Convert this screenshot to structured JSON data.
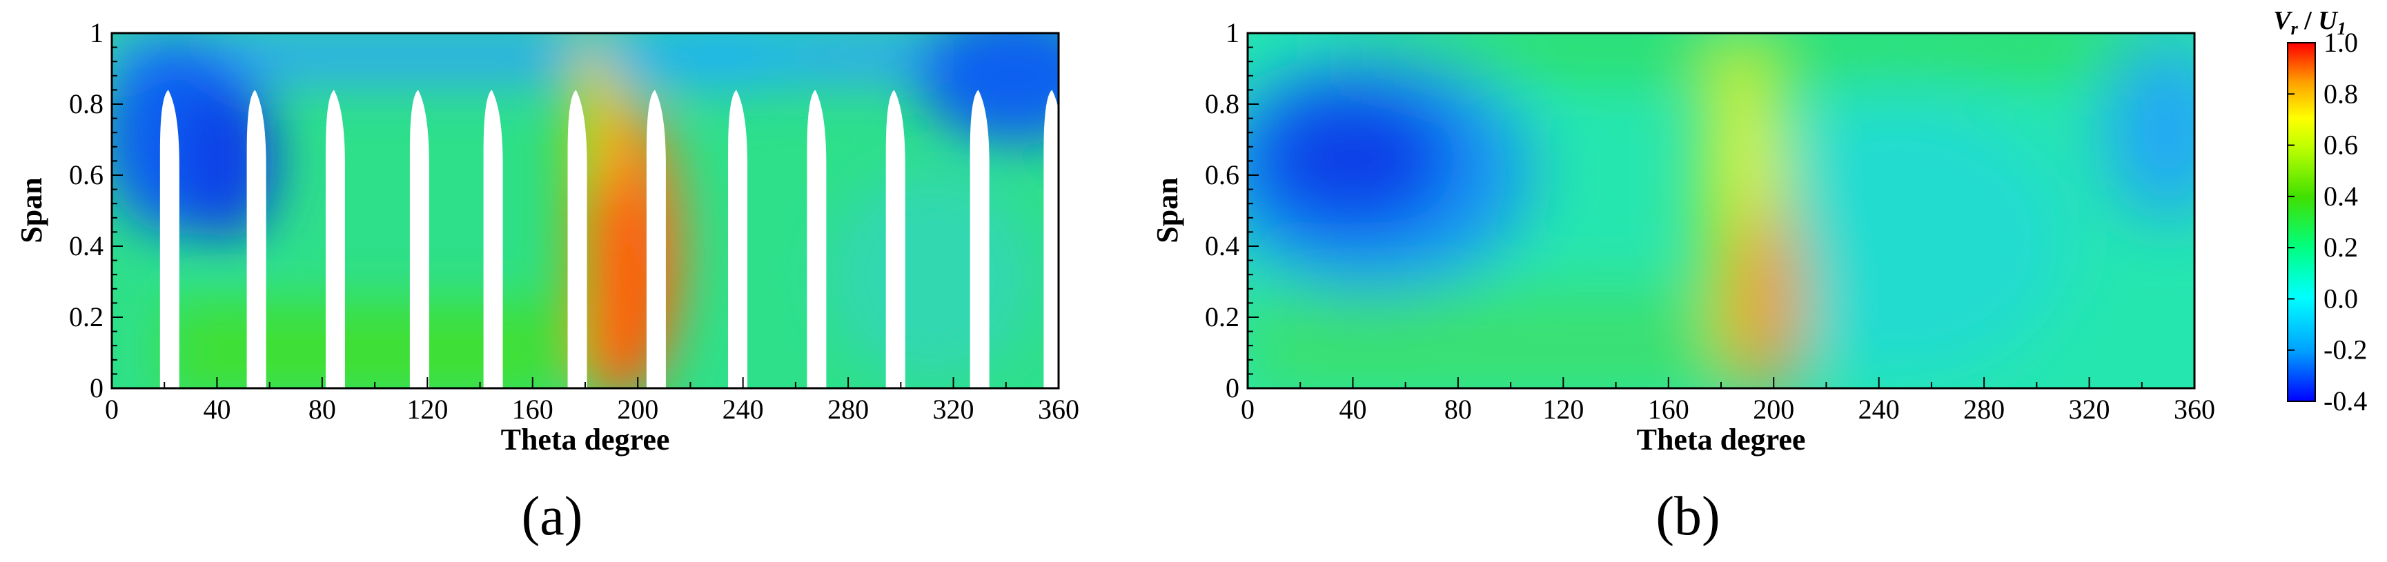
{
  "colors": {
    "colormap": [
      "#0000ff",
      "#00a0ff",
      "#00ffff",
      "#00ff80",
      "#40e000",
      "#c0ff00",
      "#ffff00",
      "#ffa000",
      "#ff0000"
    ],
    "axis": "#000000",
    "blade": "#ffffff"
  },
  "chart_data": [
    {
      "type": "heatmap",
      "panel_label": "(a)",
      "xlabel": "Theta degree",
      "ylabel": "Span",
      "xlim": [
        0,
        360
      ],
      "ylim": [
        0,
        1
      ],
      "x_ticks": [
        "0",
        "40",
        "80",
        "120",
        "160",
        "200",
        "240",
        "280",
        "320",
        "360"
      ],
      "y_ticks": [
        "0",
        "0.2",
        "0.4",
        "0.6",
        "0.8",
        "1"
      ],
      "quantity": "Vr / U1",
      "blades_theta_deg": [
        22,
        55,
        85,
        117,
        145,
        177,
        207,
        238,
        268,
        298,
        330,
        358
      ],
      "blade_tip_span": 0.84,
      "features": [
        {
          "theta": 25,
          "span": 0.7,
          "value": -0.3
        },
        {
          "theta": 190,
          "span": 0.35,
          "value": 0.75
        },
        {
          "theta": 350,
          "span": 0.85,
          "value": -0.15
        }
      ]
    },
    {
      "type": "heatmap",
      "panel_label": "(b)",
      "xlabel": "Theta degree",
      "ylabel": "Span",
      "xlim": [
        0,
        360
      ],
      "ylim": [
        0,
        1
      ],
      "x_ticks": [
        "0",
        "40",
        "80",
        "120",
        "160",
        "200",
        "240",
        "280",
        "320",
        "360"
      ],
      "y_ticks": [
        "0",
        "0.2",
        "0.4",
        "0.6",
        "0.8",
        "1"
      ],
      "quantity": "Vr / U1",
      "features": [
        {
          "theta": 40,
          "span": 0.62,
          "value": -0.3
        },
        {
          "theta": 190,
          "span": 0.3,
          "value": 0.65
        },
        {
          "theta": 350,
          "span": 0.72,
          "value": -0.1
        }
      ]
    }
  ],
  "colorbar": {
    "title_main": "V",
    "title_sub": "r",
    "title_sep": " / ",
    "title_main2": "U",
    "title_sub2": "1",
    "vmin": -0.4,
    "vmax": 1.0,
    "ticks": [
      "1.0",
      "0.8",
      "0.6",
      "0.4",
      "0.2",
      "0.0",
      "-0.2",
      "-0.4"
    ]
  }
}
